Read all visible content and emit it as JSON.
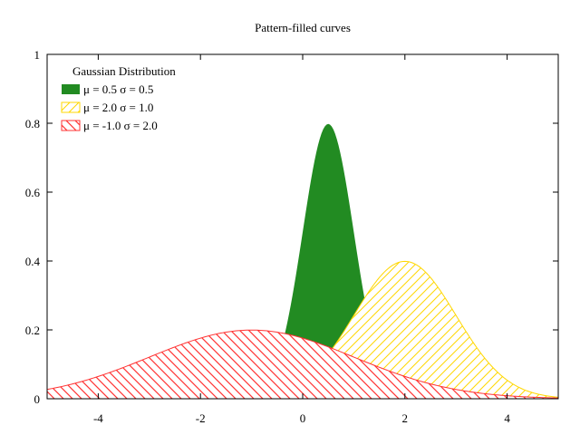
{
  "chart_data": {
    "type": "area",
    "title": "Pattern-filled curves",
    "xlabel": "",
    "ylabel": "",
    "xlim": [
      -5,
      5
    ],
    "ylim": [
      0,
      1
    ],
    "x_ticks": [
      -4,
      -2,
      0,
      2,
      4
    ],
    "y_ticks": [
      0,
      0.2,
      0.4,
      0.6,
      0.8,
      1
    ],
    "y_tick_labels": [
      "0",
      "0.2",
      "0.4",
      "0.6",
      "0.8",
      "1"
    ],
    "grid": false,
    "legend_title": "Gaussian Distribution",
    "legend_position": "top-left",
    "series": [
      {
        "name": "μ =  0.5 σ = 0.5",
        "mu": 0.5,
        "sigma": 0.5,
        "fill": "solid",
        "color": "#228b22"
      },
      {
        "name": "μ =  2.0 σ = 1.0",
        "mu": 2.0,
        "sigma": 1.0,
        "fill": "hatch-back",
        "color": "#ffd700"
      },
      {
        "name": "μ = -1.0 σ = 2.0",
        "mu": -1.0,
        "sigma": 2.0,
        "fill": "hatch-forward",
        "color": "#ff3333"
      }
    ]
  }
}
